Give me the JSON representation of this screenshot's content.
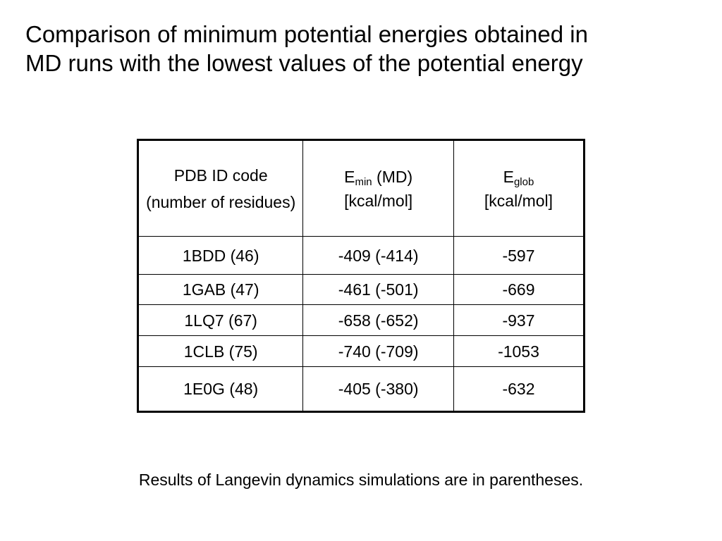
{
  "title": {
    "line1": "Comparison of minimum potential energies obtained in",
    "line2": "MD runs with the lowest values of the potential energy"
  },
  "table": {
    "header": {
      "pdb_line1": "PDB ID code",
      "pdb_line2": "(number of residues)",
      "emin_symbol": "E",
      "emin_sub": "min",
      "emin_suffix": " (MD)",
      "emin_unit": "[kcal/mol]",
      "eglob_symbol": "E",
      "eglob_sub": "glob",
      "eglob_unit": "[kcal/mol]"
    },
    "rows": [
      {
        "pdb": "1BDD (46)",
        "emin": "-409 (-414)",
        "eglob": "-597"
      },
      {
        "pdb": "1GAB (47)",
        "emin": "-461 (-501)",
        "eglob": "-669"
      },
      {
        "pdb": "1LQ7 (67)",
        "emin": "-658 (-652)",
        "eglob": "-937"
      },
      {
        "pdb": "1CLB (75)",
        "emin": "-740 (-709)",
        "eglob": "-1053"
      },
      {
        "pdb": "1E0G (48)",
        "emin": "-405 (-380)",
        "eglob": "-632"
      }
    ]
  },
  "footnote": "Results of Langevin dynamics simulations are in parentheses."
}
